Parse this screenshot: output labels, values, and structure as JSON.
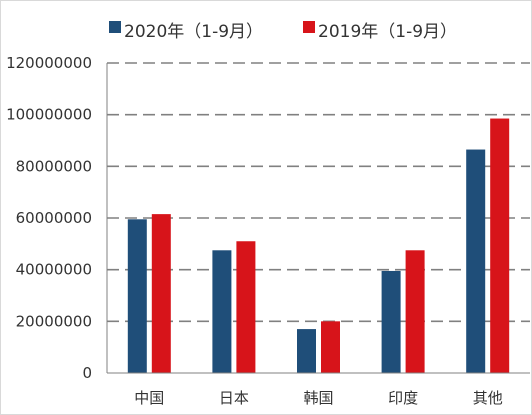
{
  "chart_data": {
    "type": "bar",
    "categories": [
      "中国",
      "日本",
      "韩国",
      "印度",
      "其他"
    ],
    "series": [
      {
        "name": "2020年（1-9月）",
        "color": "#1f4e79",
        "values": [
          59500000,
          47500000,
          17000000,
          39500000,
          86500000
        ]
      },
      {
        "name": "2019年（1-9月）",
        "color": "#d7141a",
        "values": [
          61500000,
          51000000,
          20000000,
          47500000,
          98500000
        ]
      }
    ],
    "y_ticks": [
      "0",
      "20000000",
      "40000000",
      "60000000",
      "80000000",
      "100000000",
      "120000000"
    ],
    "ylim": [
      0,
      120000000
    ],
    "grid": "dashed horizontal",
    "legend": "top-left"
  }
}
